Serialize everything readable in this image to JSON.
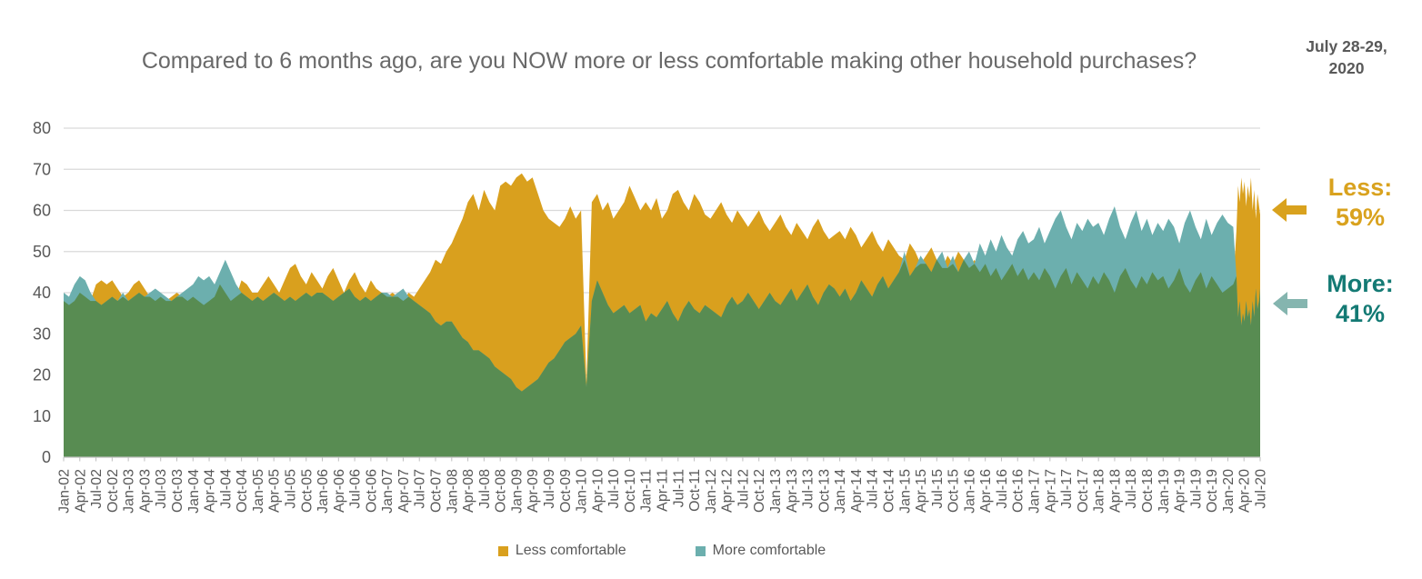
{
  "title": "Compared to 6 months ago, are you NOW more or less comfortable making other household purchases?",
  "date_label": {
    "line1": "July 28-29,",
    "line2": "2020"
  },
  "annotations": {
    "less": {
      "label": "Less:",
      "value": "59%",
      "color": "#D9A21E",
      "arrow_color": "#D9A21E"
    },
    "more": {
      "label": "More:",
      "value": "41%",
      "color": "#147A74",
      "arrow_color": "#85B5AF"
    }
  },
  "legend": [
    {
      "label": "Less comfortable",
      "color": "#D9A01E"
    },
    {
      "label": "More comfortable",
      "color": "#6CAFAE"
    }
  ],
  "chart_data": {
    "type": "area",
    "title": "Compared to 6 months ago, are you NOW more or less comfortable making other household purchases?",
    "xlabel": "",
    "ylabel": "",
    "ylim": [
      0,
      80
    ],
    "y_ticks": [
      0,
      10,
      20,
      30,
      40,
      50,
      60,
      70,
      80
    ],
    "grid": true,
    "legend_position": "bottom",
    "x_unit": "months since Jan-2002, quarterly ticks, sub-monthly points in 2020",
    "colors": {
      "less": "#D9A01E",
      "more": "#6CAFAE",
      "overlap": "#588C52",
      "gridline": "#D9D9D9",
      "axis": "#BFBFBF",
      "axis_text": "#595959"
    },
    "final_values": {
      "less": 59,
      "more": 41
    },
    "x_tick_labels": [
      "Jan-02",
      "Apr-02",
      "Jul-02",
      "Oct-02",
      "Jan-03",
      "Apr-03",
      "Jul-03",
      "Oct-03",
      "Jan-04",
      "Apr-04",
      "Jul-04",
      "Oct-04",
      "Jan-05",
      "Apr-05",
      "Jul-05",
      "Oct-05",
      "Jan-06",
      "Apr-06",
      "Jul-06",
      "Oct-06",
      "Jan-07",
      "Apr-07",
      "Jul-07",
      "Oct-07",
      "Jan-08",
      "Apr-08",
      "Jul-08",
      "Oct-08",
      "Jan-09",
      "Apr-09",
      "Jul-09",
      "Oct-09",
      "Jan-10",
      "Apr-10",
      "Jul-10",
      "Oct-10",
      "Jan-11",
      "Apr-11",
      "Jul-11",
      "Oct-11",
      "Jan-12",
      "Apr-12",
      "Jul-12",
      "Oct-12",
      "Jan-13",
      "Apr-13",
      "Jul-13",
      "Oct-13",
      "Jan-14",
      "Apr-14",
      "Jul-14",
      "Oct-14",
      "Jan-15",
      "Apr-15",
      "Jul-15",
      "Oct-15",
      "Jan-16",
      "Apr-16",
      "Jul-16",
      "Oct-16",
      "Jan-17",
      "Apr-17",
      "Jul-17",
      "Oct-17",
      "Jan-18",
      "Apr-18",
      "Jul-18",
      "Oct-18",
      "Jan-19",
      "Apr-19",
      "Jul-19",
      "Oct-19",
      "Jan-20",
      "Apr-20",
      "Jul-20"
    ],
    "x": [
      0,
      1,
      2,
      3,
      4,
      5,
      6,
      7,
      8,
      9,
      10,
      11,
      12,
      13,
      14,
      15,
      16,
      17,
      18,
      19,
      20,
      21,
      22,
      23,
      24,
      25,
      26,
      27,
      28,
      29,
      30,
      31,
      32,
      33,
      34,
      35,
      36,
      37,
      38,
      39,
      40,
      41,
      42,
      43,
      44,
      45,
      46,
      47,
      48,
      49,
      50,
      51,
      52,
      53,
      54,
      55,
      56,
      57,
      58,
      59,
      60,
      61,
      62,
      63,
      64,
      65,
      66,
      67,
      68,
      69,
      70,
      71,
      72,
      73,
      74,
      75,
      76,
      77,
      78,
      79,
      80,
      81,
      82,
      83,
      84,
      85,
      86,
      87,
      88,
      89,
      90,
      91,
      92,
      93,
      94,
      95,
      96,
      97,
      98,
      99,
      100,
      101,
      102,
      103,
      104,
      105,
      106,
      107,
      108,
      109,
      110,
      111,
      112,
      113,
      114,
      115,
      116,
      117,
      118,
      119,
      120,
      121,
      122,
      123,
      124,
      125,
      126,
      127,
      128,
      129,
      130,
      131,
      132,
      133,
      134,
      135,
      136,
      137,
      138,
      139,
      140,
      141,
      142,
      143,
      144,
      145,
      146,
      147,
      148,
      149,
      150,
      151,
      152,
      153,
      154,
      155,
      156,
      157,
      158,
      159,
      160,
      161,
      162,
      163,
      164,
      165,
      166,
      167,
      168,
      169,
      170,
      171,
      172,
      173,
      174,
      175,
      176,
      177,
      178,
      179,
      180,
      181,
      182,
      183,
      184,
      185,
      186,
      187,
      188,
      189,
      190,
      191,
      192,
      193,
      194,
      195,
      196,
      197,
      198,
      199,
      200,
      201,
      202,
      203,
      204,
      205,
      206,
      207,
      208,
      209,
      210,
      211,
      212,
      213,
      214,
      215,
      216,
      217,
      217.6,
      217.9,
      218.2,
      218.5,
      218.8,
      219.1,
      219.4,
      219.7,
      220,
      220.3,
      220.6,
      220.9,
      221.2,
      221.5,
      221.8,
      222
    ],
    "series": [
      {
        "name": "Less comfortable",
        "color": "#D9A01E",
        "values": [
          38,
          37,
          38,
          40,
          39,
          38,
          42,
          43,
          42,
          43,
          41,
          39,
          40,
          42,
          43,
          41,
          39,
          38,
          39,
          38,
          39,
          40,
          39,
          38,
          39,
          38,
          37,
          38,
          39,
          42,
          40,
          38,
          39,
          43,
          42,
          40,
          40,
          42,
          44,
          42,
          40,
          43,
          46,
          47,
          44,
          42,
          45,
          43,
          41,
          44,
          46,
          43,
          40,
          43,
          45,
          42,
          40,
          43,
          41,
          40,
          39,
          40,
          39,
          38,
          40,
          39,
          41,
          43,
          45,
          48,
          47,
          50,
          52,
          55,
          58,
          62,
          64,
          60,
          65,
          62,
          60,
          66,
          67,
          66,
          68,
          69,
          67,
          68,
          64,
          60,
          58,
          57,
          56,
          58,
          61,
          58,
          60,
          18,
          62,
          64,
          60,
          62,
          58,
          60,
          62,
          66,
          63,
          60,
          62,
          60,
          63,
          58,
          60,
          64,
          65,
          62,
          60,
          64,
          62,
          59,
          58,
          60,
          62,
          59,
          57,
          60,
          58,
          56,
          58,
          60,
          57,
          55,
          57,
          59,
          56,
          54,
          57,
          55,
          53,
          56,
          58,
          55,
          53,
          54,
          55,
          53,
          56,
          54,
          51,
          53,
          55,
          52,
          50,
          53,
          51,
          49,
          48,
          52,
          50,
          47,
          49,
          51,
          48,
          46,
          49,
          47,
          50,
          48,
          46,
          48,
          45,
          47,
          44,
          46,
          43,
          45,
          47,
          44,
          46,
          43,
          45,
          43,
          46,
          44,
          41,
          44,
          46,
          42,
          45,
          43,
          41,
          44,
          42,
          45,
          43,
          40,
          44,
          46,
          43,
          41,
          44,
          42,
          45,
          43,
          44,
          41,
          43,
          46,
          42,
          40,
          43,
          45,
          41,
          44,
          42,
          40,
          41,
          42,
          55,
          66,
          62,
          68,
          64,
          67,
          61,
          66,
          63,
          68,
          60,
          65,
          58,
          64,
          61,
          59
        ]
      },
      {
        "name": "More comfortable",
        "color": "#6CAFAE",
        "values": [
          40,
          39,
          42,
          44,
          43,
          40,
          38,
          37,
          38,
          39,
          38,
          40,
          38,
          39,
          40,
          39,
          40,
          41,
          40,
          39,
          38,
          39,
          40,
          41,
          42,
          44,
          43,
          44,
          42,
          45,
          48,
          45,
          42,
          40,
          39,
          38,
          39,
          38,
          39,
          40,
          39,
          38,
          39,
          38,
          39,
          40,
          39,
          40,
          40,
          39,
          38,
          39,
          40,
          41,
          39,
          38,
          39,
          38,
          39,
          40,
          40,
          39,
          40,
          41,
          39,
          38,
          37,
          36,
          35,
          33,
          32,
          33,
          33,
          31,
          29,
          28,
          26,
          26,
          25,
          24,
          22,
          21,
          20,
          19,
          17,
          16,
          17,
          18,
          19,
          21,
          23,
          24,
          26,
          28,
          29,
          30,
          32,
          17,
          38,
          43,
          40,
          37,
          35,
          36,
          37,
          35,
          36,
          37,
          33,
          35,
          34,
          36,
          38,
          35,
          33,
          36,
          38,
          36,
          35,
          37,
          36,
          35,
          34,
          37,
          39,
          37,
          38,
          40,
          38,
          36,
          38,
          40,
          38,
          37,
          39,
          41,
          38,
          40,
          42,
          39,
          37,
          40,
          42,
          41,
          39,
          41,
          38,
          40,
          43,
          41,
          39,
          42,
          44,
          41,
          43,
          45,
          50,
          44,
          46,
          49,
          47,
          45,
          48,
          50,
          46,
          49,
          45,
          48,
          50,
          47,
          52,
          49,
          53,
          50,
          54,
          51,
          49,
          53,
          55,
          52,
          53,
          56,
          52,
          55,
          58,
          60,
          56,
          53,
          57,
          55,
          58,
          56,
          57,
          54,
          58,
          61,
          56,
          53,
          57,
          60,
          55,
          58,
          54,
          57,
          55,
          58,
          56,
          52,
          57,
          60,
          56,
          53,
          58,
          54,
          57,
          59,
          57,
          56,
          44,
          34,
          38,
          32,
          35,
          33,
          38,
          34,
          36,
          32,
          38,
          34,
          41,
          36,
          38,
          41
        ]
      }
    ]
  }
}
